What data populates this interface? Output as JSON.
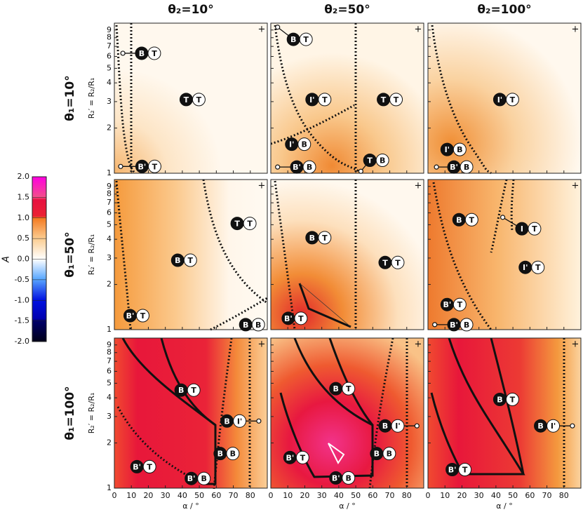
{
  "chart_data": {
    "type": "heatmap",
    "column_titles": [
      "θ₂=10°",
      "θ₂=50°",
      "θ₂=100°"
    ],
    "row_titles": [
      "θ₁=10°",
      "θ₁=50°",
      "θ₁=100°"
    ],
    "xlabel": "α / °",
    "ylabel": "R₂′ = R₂/R₁",
    "xlim": [
      0,
      90
    ],
    "xticks": [
      0,
      10,
      20,
      30,
      40,
      50,
      60,
      70,
      80
    ],
    "ylim": [
      1,
      10
    ],
    "yticks": [
      1,
      2,
      3,
      4,
      5,
      6,
      7,
      8,
      9
    ],
    "log_y": true,
    "corner_mark": "+",
    "colorbar": {
      "label": "A",
      "lim": [
        -2,
        2
      ],
      "ticks": [
        {
          "value": 2,
          "label": "2.0"
        },
        {
          "value": 1.5,
          "label": "1.5"
        },
        {
          "value": 1,
          "label": "1.0"
        },
        {
          "value": 0.5,
          "label": "0.5"
        },
        {
          "value": 0,
          "label": "0.0"
        },
        {
          "value": -0.5,
          "label": "-0.5"
        },
        {
          "value": -1,
          "label": "-1.0"
        },
        {
          "value": -1.5,
          "label": "-1.5"
        },
        {
          "value": -2,
          "label": "-2.0"
        }
      ]
    },
    "panels": [
      {
        "annotations": [
          {
            "left": "B",
            "right": "T",
            "x": 19.8,
            "y": 6.3,
            "pointer_x": 5,
            "pointer_y": 6.3
          },
          {
            "left": "T",
            "right": "T",
            "x": 46,
            "y": 3.1
          },
          {
            "left": "B'",
            "right": "T",
            "x": 20,
            "y": 1.11,
            "pointer_x": 3.7,
            "pointer_y": 1.11
          }
        ]
      },
      {
        "annotations": [
          {
            "left": "B",
            "right": "T",
            "x": 17,
            "y": 7.8,
            "pointer_x": 4,
            "pointer_y": 9.4
          },
          {
            "left": "I'",
            "right": "T",
            "x": 28,
            "y": 3.1
          },
          {
            "left": "T",
            "right": "T",
            "x": 70,
            "y": 3.1
          },
          {
            "left": "I'",
            "right": "B",
            "x": 16,
            "y": 1.56
          },
          {
            "left": "T",
            "right": "B",
            "x": 62,
            "y": 1.22,
            "pointer_x": 53,
            "pointer_y": 1.03
          },
          {
            "left": "B'",
            "right": "B",
            "x": 19,
            "y": 1.1,
            "pointer_x": 4,
            "pointer_y": 1.1
          }
        ]
      },
      {
        "annotations": [
          {
            "left": "I'",
            "right": "T",
            "x": 46,
            "y": 3.1
          },
          {
            "left": "I'",
            "right": "B",
            "x": 15,
            "y": 1.44
          },
          {
            "left": "B'",
            "right": "B",
            "x": 19,
            "y": 1.1,
            "pointer_x": 5,
            "pointer_y": 1.1
          }
        ]
      },
      {
        "annotations": [
          {
            "left": "T",
            "right": "T",
            "x": 76,
            "y": 5.1
          },
          {
            "left": "B",
            "right": "T",
            "x": 41,
            "y": 2.9
          },
          {
            "left": "B'",
            "right": "T",
            "x": 13,
            "y": 1.24
          },
          {
            "left": "B",
            "right": "B",
            "x": 81,
            "y": 1.08
          }
        ]
      },
      {
        "annotations": [
          {
            "left": "B",
            "right": "T",
            "x": 28,
            "y": 4.1
          },
          {
            "left": "T",
            "right": "T",
            "x": 71,
            "y": 2.8
          },
          {
            "left": "B'",
            "right": "T",
            "x": 14,
            "y": 1.19
          }
        ]
      },
      {
        "annotations": [
          {
            "left": "B",
            "right": "T",
            "x": 22,
            "y": 5.4
          },
          {
            "left": "I",
            "right": "T",
            "x": 59,
            "y": 4.7,
            "pointer_x": 44,
            "pointer_y": 5.6
          },
          {
            "left": "I'",
            "right": "T",
            "x": 61,
            "y": 2.6
          },
          {
            "left": "B'",
            "right": "T",
            "x": 15,
            "y": 1.47
          },
          {
            "left": "B'",
            "right": "B",
            "x": 19,
            "y": 1.08,
            "pointer_x": 4,
            "pointer_y": 1.08
          }
        ]
      },
      {
        "annotations": [
          {
            "left": "B",
            "right": "T",
            "x": 43,
            "y": 4.5
          },
          {
            "left": "B",
            "right": "I'",
            "x": 70,
            "y": 2.8,
            "pointer_x": 85,
            "pointer_y": 2.8
          },
          {
            "left": "B",
            "right": "B",
            "x": 66,
            "y": 1.7
          },
          {
            "left": "B'",
            "right": "T",
            "x": 17,
            "y": 1.39
          },
          {
            "left": "B'",
            "right": "B",
            "x": 49,
            "y": 1.16
          }
        ]
      },
      {
        "annotations": [
          {
            "left": "B",
            "right": "T",
            "x": 42,
            "y": 4.6
          },
          {
            "left": "B",
            "right": "I'",
            "x": 71,
            "y": 2.6,
            "pointer_x": 86,
            "pointer_y": 2.6
          },
          {
            "left": "B",
            "right": "B",
            "x": 66,
            "y": 1.7
          },
          {
            "left": "B'",
            "right": "T",
            "x": 15,
            "y": 1.6
          },
          {
            "left": "B'",
            "right": "B",
            "x": 42,
            "y": 1.17
          }
        ]
      },
      {
        "annotations": [
          {
            "left": "B",
            "right": "T",
            "x": 46,
            "y": 3.9
          },
          {
            "left": "B",
            "right": "I'",
            "x": 70,
            "y": 2.6,
            "pointer_x": 85,
            "pointer_y": 2.6
          },
          {
            "left": "B'",
            "right": "T",
            "x": 18,
            "y": 1.33
          }
        ]
      }
    ]
  }
}
